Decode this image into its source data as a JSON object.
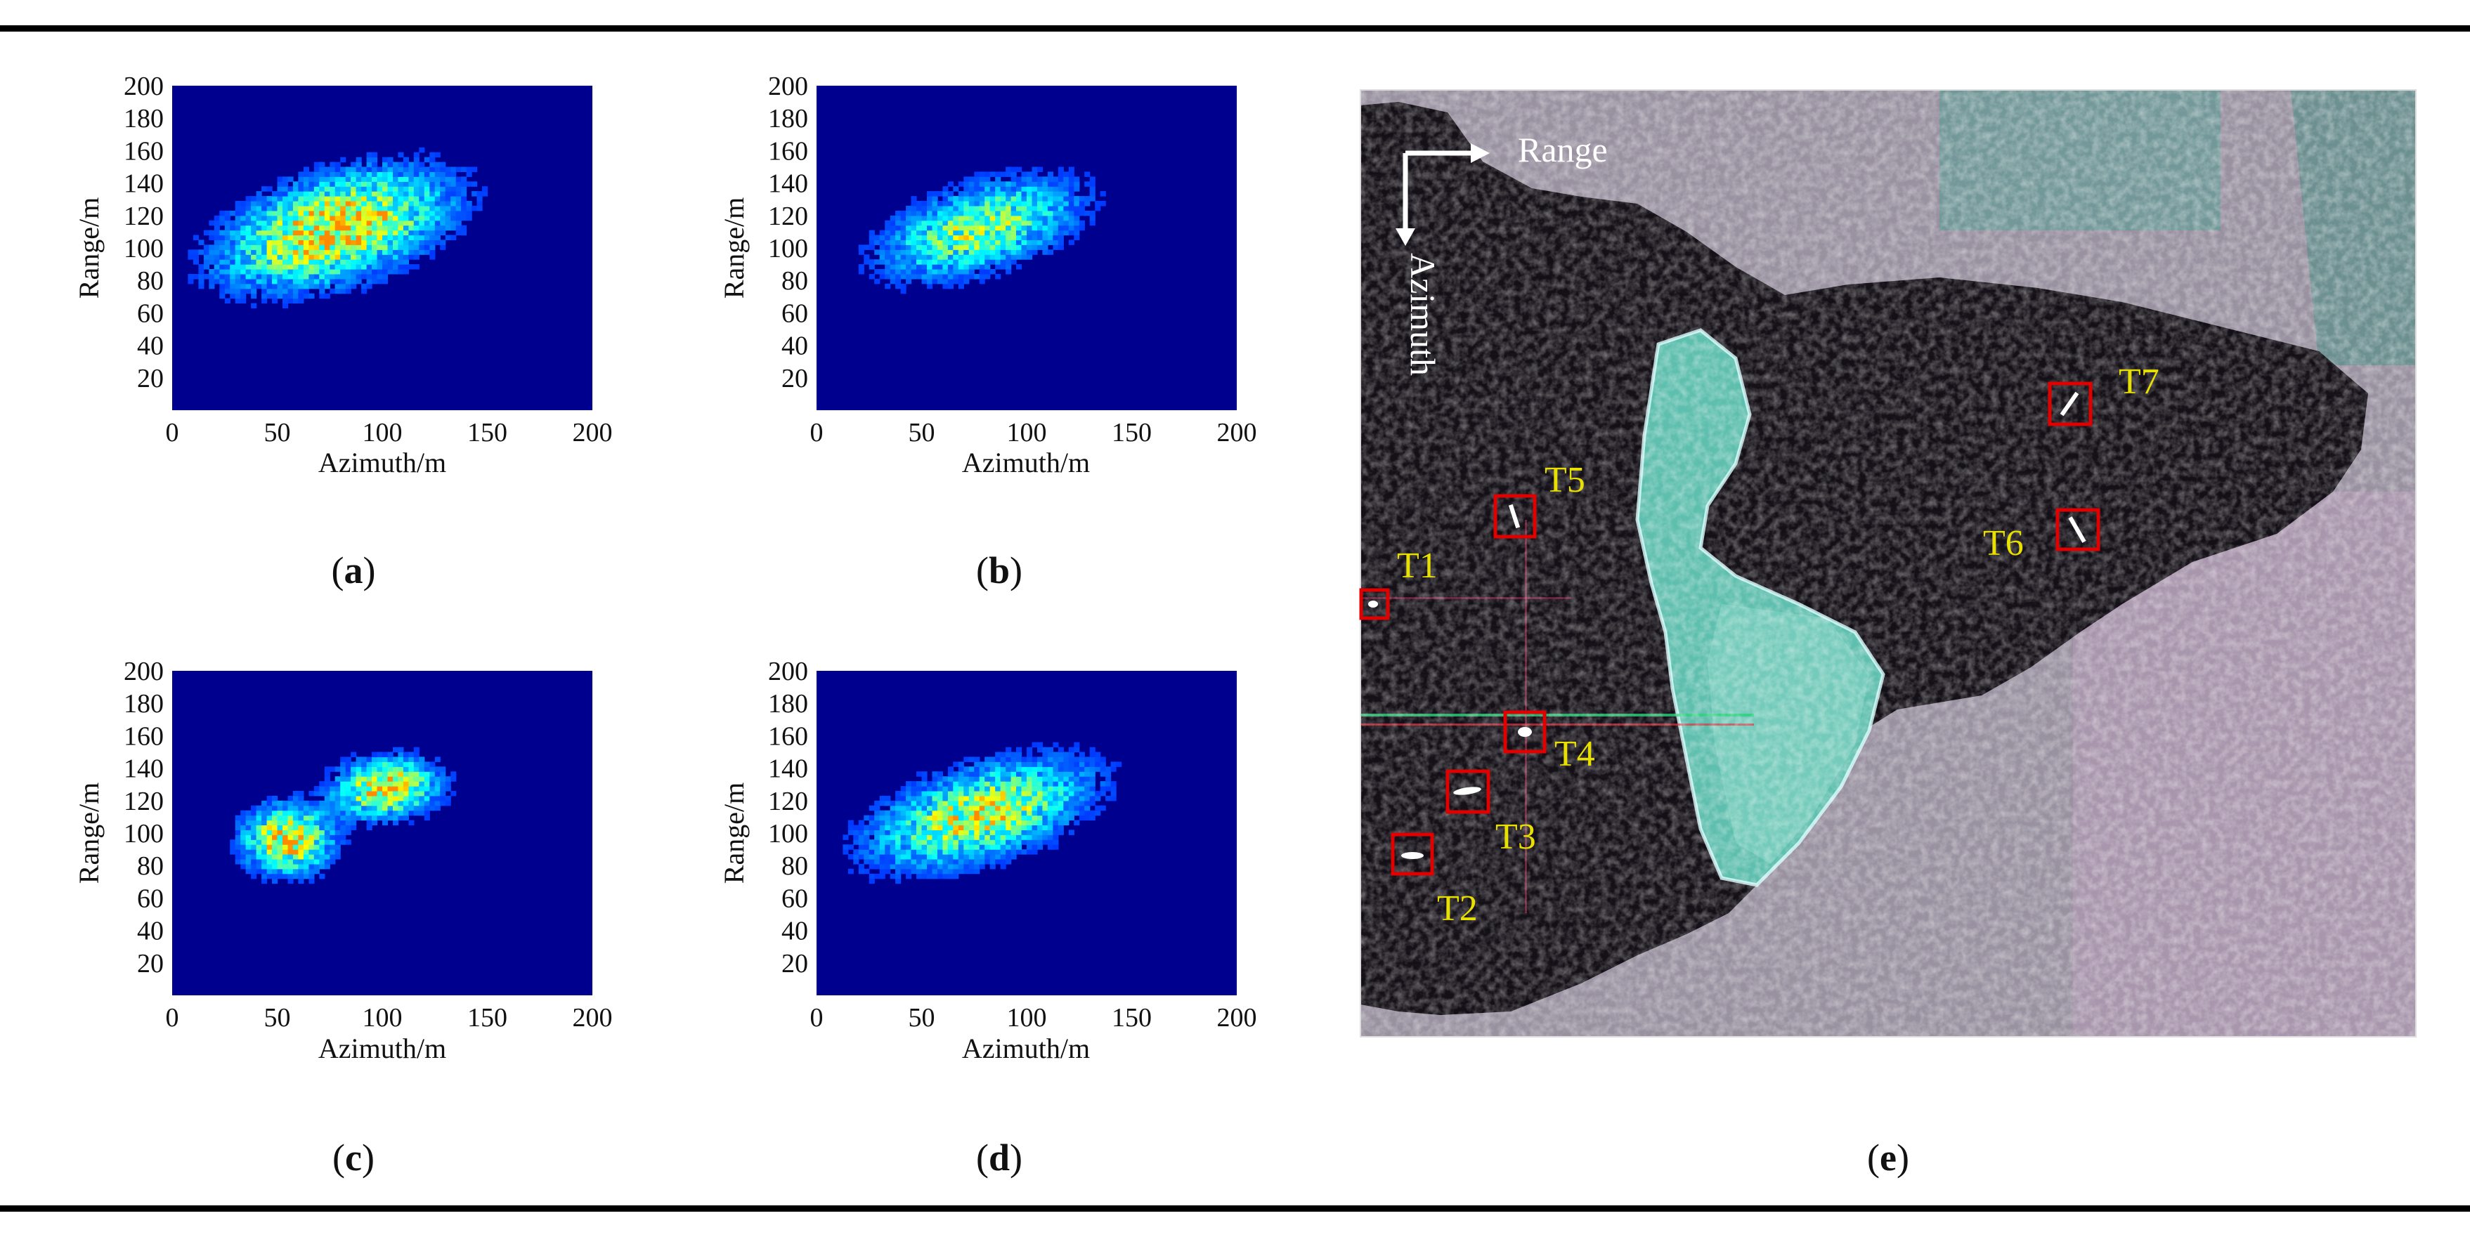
{
  "colors": {
    "heatmap_background": "#00008f",
    "target_box": "#e00000",
    "target_label": "#e8e000",
    "direction_arrow": "#ffffff"
  },
  "chart_data": [
    {
      "id": "a",
      "type": "heatmap",
      "xlabel": "Azimuth/m",
      "ylabel": "Range/m",
      "xlim": [
        0,
        200
      ],
      "ylim": [
        0,
        200
      ],
      "xticks": [
        0,
        50,
        100,
        150,
        200
      ],
      "yticks": [
        20,
        40,
        60,
        80,
        100,
        120,
        140,
        160,
        180,
        200
      ],
      "caption": {
        "open": "(",
        "letter": "a",
        "close": ")"
      },
      "blobs": [
        {
          "x": 78,
          "y": 112,
          "sx": 34,
          "sy": 18,
          "angle_deg": 24,
          "peak": 0.85
        }
      ]
    },
    {
      "id": "b",
      "type": "heatmap",
      "xlabel": "Azimuth/m",
      "ylabel": "Range/m",
      "xlim": [
        0,
        200
      ],
      "ylim": [
        0,
        200
      ],
      "xticks": [
        0,
        50,
        100,
        150,
        200
      ],
      "yticks": [
        20,
        40,
        60,
        80,
        100,
        120,
        140,
        160,
        180,
        200
      ],
      "caption": {
        "open": "(",
        "letter": "b",
        "close": ")"
      },
      "blobs": [
        {
          "x": 78,
          "y": 112,
          "sx": 30,
          "sy": 15,
          "angle_deg": 24,
          "peak": 0.6
        }
      ]
    },
    {
      "id": "c",
      "type": "heatmap",
      "xlabel": "Azimuth/m",
      "ylabel": "Range/m",
      "xlim": [
        0,
        200
      ],
      "ylim": [
        0,
        200
      ],
      "xticks": [
        0,
        50,
        100,
        150,
        200
      ],
      "yticks": [
        20,
        40,
        60,
        80,
        100,
        120,
        140,
        160,
        180,
        200
      ],
      "caption": {
        "open": "(",
        "letter": "c",
        "close": ")"
      },
      "blobs": [
        {
          "x": 55,
          "y": 96,
          "sx": 13,
          "sy": 13,
          "angle_deg": 10,
          "peak": 0.8
        },
        {
          "x": 102,
          "y": 128,
          "sx": 15,
          "sy": 11,
          "angle_deg": 10,
          "peak": 0.8
        }
      ]
    },
    {
      "id": "d",
      "type": "heatmap",
      "xlabel": "Azimuth/m",
      "ylabel": "Range/m",
      "xlim": [
        0,
        200
      ],
      "ylim": [
        0,
        200
      ],
      "xticks": [
        0,
        50,
        100,
        150,
        200
      ],
      "yticks": [
        20,
        40,
        60,
        80,
        100,
        120,
        140,
        160,
        180,
        200
      ],
      "caption": {
        "open": "(",
        "letter": "d",
        "close": ")"
      },
      "blobs": [
        {
          "x": 78,
          "y": 112,
          "sx": 33,
          "sy": 16,
          "angle_deg": 24,
          "peak": 0.7
        }
      ]
    }
  ],
  "sar_image": {
    "caption": {
      "open": "(",
      "letter": "e",
      "close": ")"
    },
    "range_label": "Range",
    "azimuth_label": "Azimuth",
    "targets": [
      "T1",
      "T2",
      "T3",
      "T4",
      "T5",
      "T6",
      "T7"
    ]
  }
}
